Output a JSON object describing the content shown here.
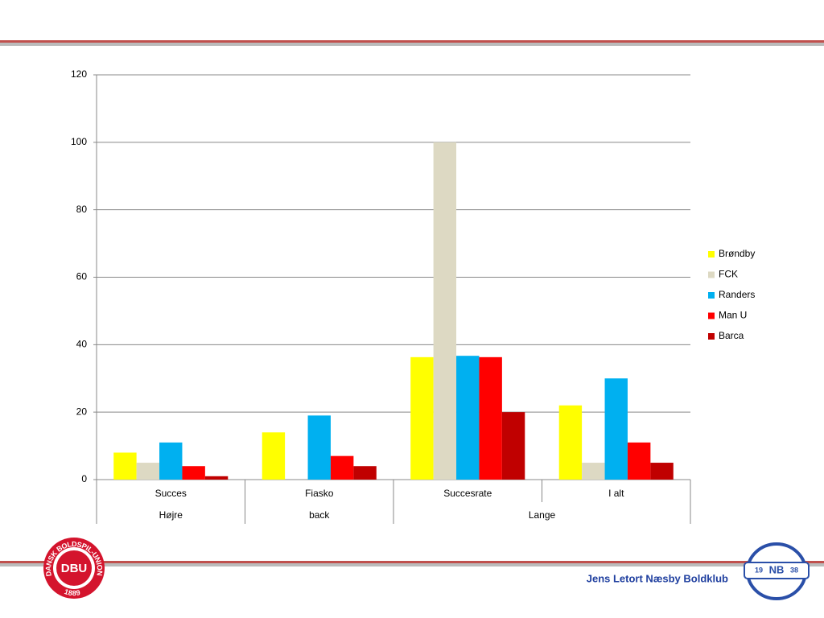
{
  "chart_data": {
    "type": "bar",
    "categories": [
      "Succes",
      "Fiasko",
      "Succesrate",
      "I alt"
    ],
    "category_groups": [
      "Højre",
      "back",
      "Lange",
      "Lange"
    ],
    "series": [
      {
        "name": "Brøndby",
        "color": "#ffff00",
        "values": [
          8,
          14,
          36.3,
          22
        ]
      },
      {
        "name": "FCK",
        "color": "#ddd9c3",
        "values": [
          5,
          null,
          100,
          5
        ]
      },
      {
        "name": "Randers",
        "color": "#00b0f0",
        "values": [
          11,
          19,
          36.7,
          30
        ]
      },
      {
        "name": "Man U",
        "color": "#ff0000",
        "values": [
          4,
          7,
          36.3,
          11
        ]
      },
      {
        "name": "Barca",
        "color": "#c00000",
        "values": [
          1,
          4,
          20,
          5
        ]
      }
    ],
    "ylim": [
      0,
      120
    ],
    "yticks": [
      0,
      20,
      40,
      60,
      80,
      100,
      120
    ],
    "grid": true,
    "legend": "right"
  },
  "slide": {
    "footer": "Jens Letort  Næsby Boldklub",
    "logo_left": {
      "ring": "DANSK BOLDSPIL-UNION",
      "initials": "DBU",
      "year": "1889"
    },
    "logo_right": {
      "left": "19",
      "initials": "NB",
      "right": "38"
    }
  }
}
